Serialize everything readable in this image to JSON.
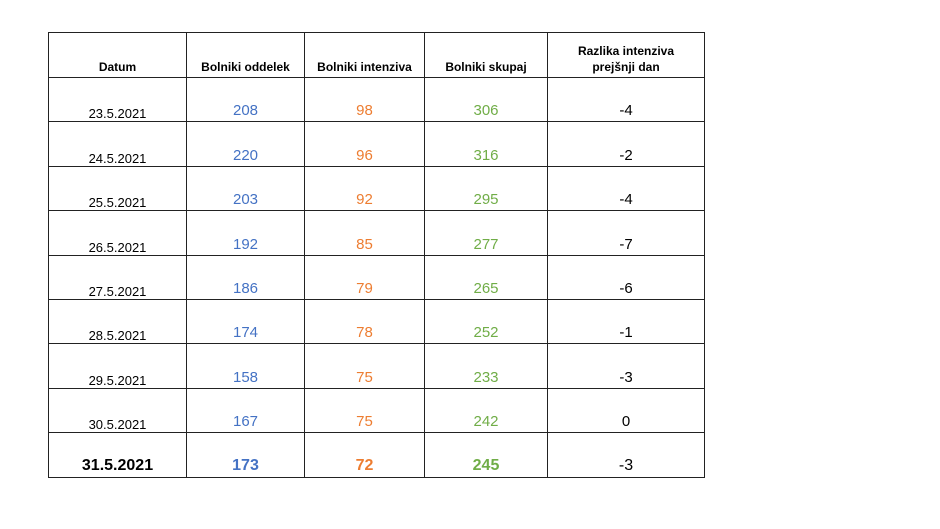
{
  "table": {
    "headers": [
      "Datum",
      "Bolniki oddelek",
      "Bolniki intenziva",
      "Bolniki skupaj",
      "Razlika intenziva prejšnji dan"
    ],
    "rows": [
      [
        "23.5.2021",
        "208",
        "98",
        "306",
        "-4"
      ],
      [
        "24.5.2021",
        "220",
        "96",
        "316",
        "-2"
      ],
      [
        "25.5.2021",
        "203",
        "92",
        "295",
        "-4"
      ],
      [
        "26.5.2021",
        "192",
        "85",
        "277",
        "-7"
      ],
      [
        "27.5.2021",
        "186",
        "79",
        "265",
        "-6"
      ],
      [
        "28.5.2021",
        "174",
        "78",
        "252",
        "-1"
      ],
      [
        "29.5.2021",
        "158",
        "75",
        "233",
        "-3"
      ],
      [
        "30.5.2021",
        "167",
        "75",
        "242",
        "0"
      ],
      [
        "31.5.2021",
        "173",
        "72",
        "245",
        "-3"
      ]
    ]
  },
  "colors": {
    "oddelek": "#4472c4",
    "intenziva": "#ed7d31",
    "skupaj": "#70ad47"
  }
}
